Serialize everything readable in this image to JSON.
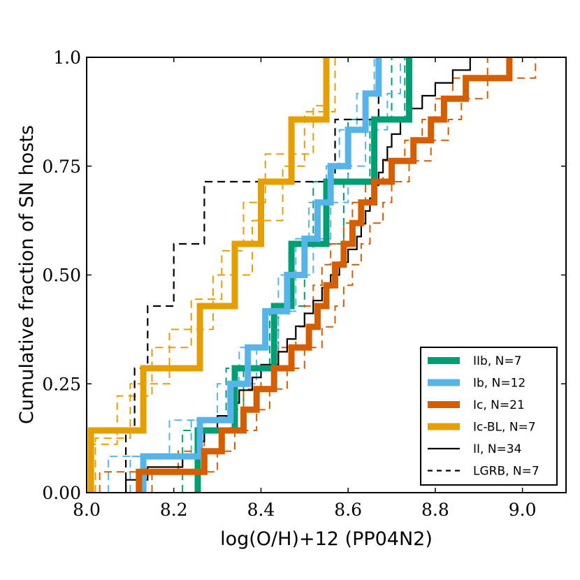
{
  "chart_data": {
    "type": "line",
    "step": true,
    "xlabel": "log(O/H)+12 (PP04N2)",
    "ylabel": "Cumulative fraction of SN hosts",
    "xlim": [
      8.0,
      9.1
    ],
    "ylim": [
      0.0,
      1.0
    ],
    "xticks": [
      "8.0",
      "8.2",
      "8.4",
      "8.6",
      "8.8",
      "9.0"
    ],
    "yticks": [
      "0.00",
      "0.25",
      "0.50",
      "0.75",
      "1.0"
    ],
    "legend_position": "lower-right",
    "series": [
      {
        "name": "IIb, N=7",
        "color": "#009e73",
        "style": "thick",
        "x": [
          8.255,
          8.34,
          8.43,
          8.47,
          8.55,
          8.66,
          8.74
        ]
      },
      {
        "name": "Ib, N=12",
        "color": "#56b4e9",
        "style": "thick",
        "x": [
          8.13,
          8.26,
          8.33,
          8.37,
          8.41,
          8.46,
          8.5,
          8.53,
          8.56,
          8.6,
          8.64,
          8.67
        ]
      },
      {
        "name": "Ic, N=21",
        "color": "#d55e00",
        "style": "thick",
        "x": [
          8.12,
          8.27,
          8.31,
          8.36,
          8.39,
          8.43,
          8.47,
          8.51,
          8.53,
          8.55,
          8.57,
          8.59,
          8.61,
          8.63,
          8.66,
          8.7,
          8.75,
          8.79,
          8.82,
          8.87,
          8.97
        ]
      },
      {
        "name": "Ic-BL, N=7",
        "color": "#e69f00",
        "style": "thick",
        "x": [
          8.01,
          8.13,
          8.26,
          8.34,
          8.4,
          8.47,
          8.55
        ]
      },
      {
        "name": "II, N=34",
        "color": "#000000",
        "style": "thin",
        "x": [
          8.09,
          8.14,
          8.22,
          8.26,
          8.27,
          8.3,
          8.34,
          8.35,
          8.38,
          8.4,
          8.44,
          8.46,
          8.48,
          8.5,
          8.52,
          8.54,
          8.56,
          8.58,
          8.6,
          8.62,
          8.63,
          8.64,
          8.65,
          8.66,
          8.67,
          8.68,
          8.69,
          8.7,
          8.72,
          8.74,
          8.77,
          8.8,
          8.84,
          8.88
        ]
      },
      {
        "name": "LGRB, N=7",
        "color": "#000000",
        "style": "thin-dashed",
        "x": [
          8.09,
          8.11,
          8.14,
          8.2,
          8.27,
          8.57,
          8.67
        ]
      },
      {
        "name": "Ic-BL resample",
        "color": "#e69f00",
        "style": "dashed",
        "in_legend": false,
        "x": [
          8.0,
          8.07,
          8.15,
          8.24,
          8.31,
          8.36,
          8.41,
          8.52,
          8.55
        ]
      },
      {
        "name": "Ic-BL resample",
        "color": "#e69f00",
        "style": "dashed",
        "in_legend": false,
        "x": [
          8.02,
          8.1,
          8.19,
          8.29,
          8.38,
          8.45,
          8.5,
          8.57
        ]
      },
      {
        "name": "IIb resample",
        "color": "#009e73",
        "style": "dashed",
        "in_legend": false,
        "x": [
          8.22,
          8.32,
          8.42,
          8.47,
          8.52,
          8.6,
          8.7
        ]
      },
      {
        "name": "IIb resample",
        "color": "#009e73",
        "style": "dashed",
        "in_legend": false,
        "x": [
          8.25,
          8.36,
          8.44,
          8.5,
          8.59,
          8.65,
          8.73
        ]
      },
      {
        "name": "Ib resample",
        "color": "#56b4e9",
        "style": "dashed",
        "in_legend": false,
        "x": [
          8.05,
          8.19,
          8.3,
          8.35,
          8.41,
          8.44,
          8.48,
          8.51,
          8.55,
          8.58,
          8.62,
          8.66
        ]
      },
      {
        "name": "Ib resample",
        "color": "#56b4e9",
        "style": "dashed",
        "in_legend": false,
        "x": [
          8.1,
          8.24,
          8.33,
          8.39,
          8.44,
          8.48,
          8.52,
          8.56,
          8.6,
          8.64,
          8.69,
          8.72
        ]
      },
      {
        "name": "Ic resample",
        "color": "#d55e00",
        "style": "dashed",
        "in_legend": false,
        "x": [
          8.03,
          8.21,
          8.27,
          8.33,
          8.36,
          8.4,
          8.44,
          8.48,
          8.5,
          8.52,
          8.54,
          8.56,
          8.59,
          8.61,
          8.64,
          8.68,
          8.73,
          8.77,
          8.8,
          8.84,
          8.92
        ]
      },
      {
        "name": "Ic resample",
        "color": "#d55e00",
        "style": "dashed",
        "in_legend": false,
        "x": [
          8.15,
          8.3,
          8.34,
          8.39,
          8.42,
          8.46,
          8.5,
          8.54,
          8.57,
          8.59,
          8.61,
          8.63,
          8.65,
          8.68,
          8.7,
          8.74,
          8.79,
          8.83,
          8.86,
          8.92,
          9.03
        ]
      }
    ]
  }
}
